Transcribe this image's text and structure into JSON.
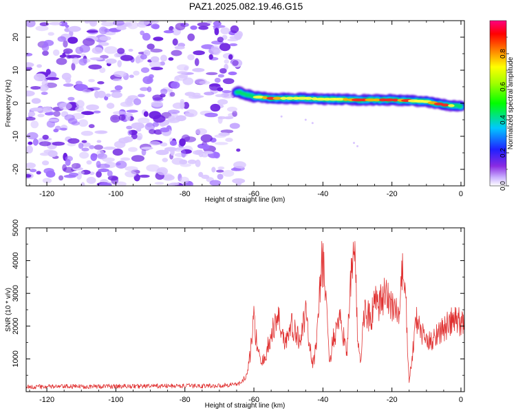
{
  "title": "PAZ1.2025.082.19.46.G15",
  "colors": {
    "spectrum_light": "#d9c6ff",
    "spectrum_mid": "#a070ff",
    "spectrum_dark": "#6a1ee0",
    "snr_line": "#e03030"
  },
  "chart_data": [
    {
      "type": "heatmap",
      "xlabel": "Height of straight line (km)",
      "ylabel": "Frequency (Hz)",
      "xlim": [
        -126,
        1
      ],
      "ylim": [
        -25,
        25
      ],
      "x_ticks": [
        -120,
        -100,
        -80,
        -60,
        -40,
        -20,
        0
      ],
      "y_ticks": [
        -20,
        -10,
        0,
        10,
        20
      ],
      "colorbar": {
        "label": "Normalized spectral amplitude",
        "range": [
          0.0,
          1.0
        ],
        "ticks": [
          "0.0",
          "0.2",
          "0.4",
          "0.6",
          "0.8"
        ],
        "colormap": "rainbow (purple-blue-cyan-green-yellow-red-magenta)"
      },
      "noise_region_x": [
        -126,
        -64
      ],
      "ridge": {
        "x": [
          -65,
          -60,
          -55,
          -50,
          -45,
          -40,
          -35,
          -30,
          -25,
          -20,
          -15,
          -10,
          -5,
          0
        ],
        "frequency": [
          3.5,
          2.0,
          1.5,
          1.5,
          1.5,
          1.2,
          1.2,
          1.0,
          1.0,
          1.0,
          0.8,
          0.5,
          -0.5,
          -1.0
        ],
        "peak_amplitude": [
          0.3,
          0.5,
          1.0,
          0.8,
          0.6,
          0.7,
          0.8,
          0.9,
          1.0,
          1.0,
          0.8,
          0.7,
          1.0,
          0.4
        ]
      }
    },
    {
      "type": "line",
      "xlabel": "Height of straight line (km)",
      "ylabel": "SNR (10 * v/v)",
      "xlim": [
        -126,
        1
      ],
      "ylim": [
        0,
        5000
      ],
      "x_ticks": [
        -120,
        -100,
        -80,
        -60,
        -40,
        -20,
        0
      ],
      "y_ticks": [
        1000,
        2000,
        3000,
        4000,
        5000
      ],
      "series": [
        {
          "x": [
            -126,
            -70,
            -64,
            -62,
            -61,
            -60,
            -59,
            -58,
            -57,
            -55,
            -53,
            -51,
            -49,
            -47,
            -45,
            -43,
            -42,
            -41,
            -40,
            -39,
            -38,
            -37,
            -35,
            -33,
            -32,
            -31,
            -30,
            -29,
            -28,
            -26,
            -25,
            -24,
            -22,
            -20,
            -18,
            -17,
            -16,
            -15,
            -14,
            -13,
            -11,
            -9,
            -7,
            -5,
            -3,
            -1,
            0,
            1
          ],
          "y": [
            150,
            180,
            250,
            500,
            1200,
            2200,
            1400,
            800,
            1000,
            1700,
            2300,
            1500,
            2000,
            1600,
            2300,
            800,
            1300,
            3200,
            4050,
            2500,
            900,
            1600,
            2100,
            1300,
            3100,
            5000,
            1800,
            900,
            2500,
            2200,
            2700,
            2600,
            2900,
            2700,
            2300,
            3600,
            2800,
            300,
            1200,
            2200,
            1700,
            1500,
            1800,
            1900,
            2100,
            2200,
            2050,
            2100
          ]
        }
      ]
    }
  ]
}
